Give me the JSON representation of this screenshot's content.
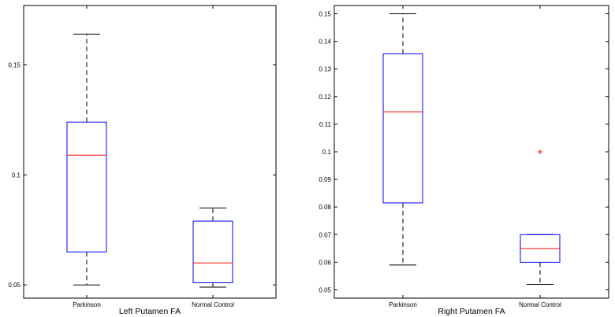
{
  "chart_data": [
    {
      "type": "box",
      "xlabel": "Left Putamen FA",
      "categories": [
        "Parkinson",
        "Normal Control"
      ],
      "ylim": [
        0.044,
        0.177
      ],
      "yticks": [
        0.05,
        0.1,
        0.15
      ],
      "ytick_labels": [
        "0.05",
        "0.1",
        "0.15"
      ],
      "boxes": [
        {
          "whisker_low": 0.05,
          "q1": 0.065,
          "median": 0.109,
          "q3": 0.124,
          "whisker_high": 0.164,
          "outliers": []
        },
        {
          "whisker_low": 0.049,
          "q1": 0.051,
          "median": 0.06,
          "q3": 0.079,
          "whisker_high": 0.085,
          "outliers": []
        }
      ]
    },
    {
      "type": "box",
      "xlabel": "Right Putamen FA",
      "categories": [
        "Parkinson",
        "Normal Control"
      ],
      "ylim": [
        0.047,
        0.153
      ],
      "yticks": [
        0.05,
        0.06,
        0.07,
        0.08,
        0.09,
        0.1,
        0.11,
        0.12,
        0.13,
        0.14,
        0.15
      ],
      "ytick_labels": [
        "0.05",
        "0.06",
        "0.07",
        "0.08",
        "0.09",
        "0.1",
        "0.11",
        "0.12",
        "0.13",
        "0.14",
        "0.15"
      ],
      "boxes": [
        {
          "whisker_low": 0.059,
          "q1": 0.0815,
          "median": 0.1145,
          "q3": 0.1355,
          "whisker_high": 0.15,
          "outliers": []
        },
        {
          "whisker_low": 0.052,
          "q1": 0.06,
          "median": 0.065,
          "q3": 0.07,
          "whisker_high": 0.07,
          "outliers": [
            0.1
          ]
        }
      ]
    }
  ],
  "colors": {
    "box": "#0000ff",
    "median": "#ff0000",
    "whisker": "#000000",
    "outlier": "#ff0000"
  }
}
